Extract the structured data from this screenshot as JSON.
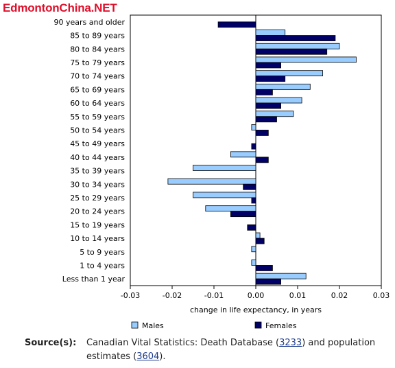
{
  "logo": {
    "text": "EdmontonChina.NET"
  },
  "chart_data": {
    "type": "bar",
    "orientation": "horizontal",
    "categories": [
      "90 years and older",
      "85 to 89 years",
      "80 to 84 years",
      "75 to 79 years",
      "70 to 74 years",
      "65 to 69 years",
      "60 to 64 years",
      "55 to 59 years",
      "50 to 54 years",
      "45 to 49 years",
      "40 to 44 years",
      "35 to 39 years",
      "30 to 34 years",
      "25 to 29 years",
      "20 to 24 years",
      "15 to 19 years",
      "10 to 14 years",
      "5 to 9 years",
      "1 to 4 years",
      "Less than 1 year"
    ],
    "series": [
      {
        "name": "Males",
        "color": "#99ccff",
        "values": [
          null,
          0.007,
          0.02,
          0.024,
          0.016,
          0.013,
          0.011,
          0.009,
          -0.001,
          null,
          -0.006,
          -0.015,
          -0.021,
          -0.015,
          -0.012,
          null,
          0.001,
          -0.001,
          -0.001,
          0.012
        ]
      },
      {
        "name": "Females",
        "color": "#000066",
        "values": [
          -0.009,
          0.019,
          0.017,
          0.006,
          0.007,
          0.004,
          0.006,
          0.005,
          0.003,
          -0.001,
          0.003,
          null,
          -0.003,
          -0.001,
          -0.006,
          -0.002,
          0.002,
          null,
          0.004,
          0.006
        ]
      }
    ],
    "xlim": [
      -0.03,
      0.03
    ],
    "xticks": [
      "-0.03",
      "-0.02",
      "-0.01",
      "0.00",
      "0.01",
      "0.02",
      "0.03"
    ],
    "xlabel": "change in life expectancy, in years",
    "legend_position": "bottom"
  },
  "source": {
    "label": "Source(s):",
    "text_1": "Canadian Vital Statistics: Death Database (",
    "link_1": "3233",
    "text_2": ") and population estimates (",
    "link_2": "3604",
    "text_3": ")."
  }
}
